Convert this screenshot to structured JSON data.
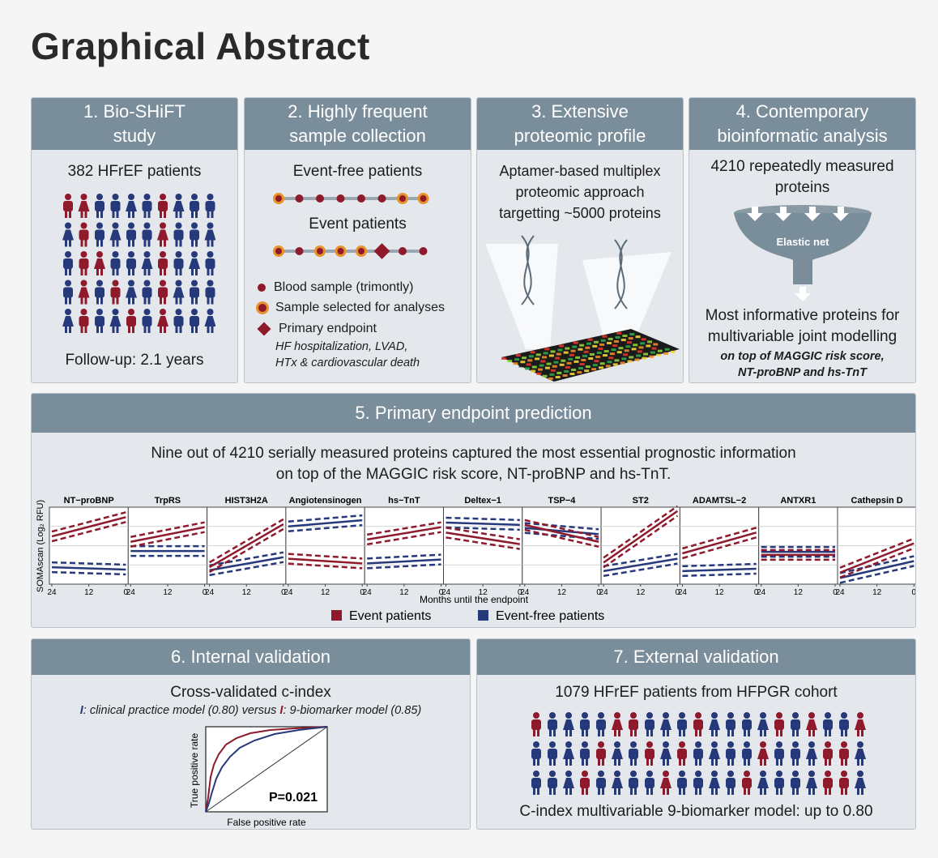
{
  "title": "Graphical Abstract",
  "panel1": {
    "heading_line1": "1. Bio-SHiFT",
    "heading_line2": "study",
    "patients": "382 HFrEF patients",
    "followup": "Follow-up: 2.1 years"
  },
  "panel2": {
    "heading_line1": "2. Highly frequent",
    "heading_line2": "sample collection",
    "event_free": "Event-free patients",
    "event": "Event patients",
    "legend": {
      "blood": "Blood sample (trimontly)",
      "selected": "Sample selected for analyses",
      "endpoint": "Primary endpoint",
      "endpoint_detail1": "HF hospitalization, LVAD,",
      "endpoint_detail2": "HTx & cardiovascular death"
    }
  },
  "panel3": {
    "heading_line1": "3. Extensive",
    "heading_line2": "proteomic profile",
    "line1": "Aptamer-based multiplex",
    "line2": "proteomic approach",
    "line3": "targetting ~5000 proteins"
  },
  "panel4": {
    "heading_line1": "4. Contemporary",
    "heading_line2": "bioinformatic analysis",
    "line1": "4210 repeatedly measured",
    "line2": "proteins",
    "funnel_label": "Elastic net",
    "result1": "Most informative proteins for",
    "result2": "multivariable joint modelling",
    "note1": "on top of MAGGIC risk score,",
    "note2": "NT-proBNP and hs-TnT"
  },
  "panel5": {
    "heading": "5. Primary endpoint prediction",
    "line1": "Nine out of 4210 serially measured proteins captured the most essential prognostic information",
    "line2": "on top of the MAGGIC risk score, NT-proBNP and hs-TnT.",
    "xlabel": "Months until the endpoint",
    "ylabel": "SOMAscan (Log₂ RFU)",
    "legend_event": "Event patients",
    "legend_eventfree": "Event-free patients"
  },
  "chart_data": {
    "type": "line",
    "xlabel": "Months until the endpoint",
    "ylabel": "SOMAscan (Log₂ RFU)",
    "x_ticks": [
      "24",
      "12",
      "0"
    ],
    "series_names": [
      "Event patients",
      "Event-free patients"
    ],
    "colors": {
      "event": "#8e1a2c",
      "eventfree": "#26397a"
    },
    "panels": [
      {
        "name": "NT−proBNP",
        "event": [
          0.62,
          0.87
        ],
        "eventfree": [
          0.22,
          0.19
        ]
      },
      {
        "name": "TrpRS",
        "event": [
          0.55,
          0.74
        ],
        "eventfree": [
          0.43,
          0.43
        ]
      },
      {
        "name": "HIST3H2A",
        "event": [
          0.22,
          0.78
        ],
        "eventfree": [
          0.18,
          0.35
        ]
      },
      {
        "name": "Angiotensinogen",
        "event": [
          0.33,
          0.27
        ],
        "eventfree": [
          0.75,
          0.83
        ]
      },
      {
        "name": "hs−TnT",
        "event": [
          0.58,
          0.74
        ],
        "eventfree": [
          0.27,
          0.32
        ]
      },
      {
        "name": "Deltex−1",
        "event": [
          0.67,
          0.52
        ],
        "eventfree": [
          0.8,
          0.77
        ]
      },
      {
        "name": "TSP−4",
        "event": [
          0.77,
          0.55
        ],
        "eventfree": [
          0.73,
          0.65
        ]
      },
      {
        "name": "ST2",
        "event": [
          0.28,
          0.95
        ],
        "eventfree": [
          0.17,
          0.33
        ]
      },
      {
        "name": "ADAMTSL−2",
        "event": [
          0.4,
          0.67
        ],
        "eventfree": [
          0.17,
          0.2
        ]
      },
      {
        "name": "ANTXR1",
        "event": [
          0.38,
          0.38
        ],
        "eventfree": [
          0.42,
          0.42
        ]
      },
      {
        "name": "Cathepsin D",
        "event": [
          0.15,
          0.53
        ],
        "eventfree": [
          0.08,
          0.3
        ]
      }
    ]
  },
  "panel6": {
    "heading": "6. Internal validation",
    "line1": "Cross-validated c-index",
    "marker": "I",
    "clinical": ": clinical practice model (0.80) versus ",
    "nine": ": 9-biomarker model (0.85)",
    "roc_x": "False positive rate",
    "roc_y": "True positive rate",
    "pval": "P=0.021"
  },
  "panel7": {
    "heading": "7. External validation",
    "line1": "1079 HFrEF patients from HFPGR cohort",
    "line2": "C-index multivariable 9-biomarker model: up to 0.80"
  }
}
